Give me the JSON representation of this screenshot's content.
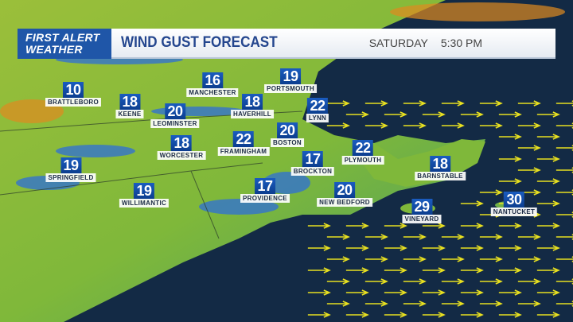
{
  "header": {
    "logo_line1": "FIRST ALERT",
    "logo_line2": "WEATHER",
    "title": "WIND GUST FORECAST",
    "day": "SATURDAY",
    "time": "5:30 PM"
  },
  "colors": {
    "logo_bg": "#1f56a8",
    "title": "#24468e",
    "ocean": "#132a45",
    "land": "#7fb83a",
    "arrow": "#e8e020"
  },
  "units": "mph",
  "cities": [
    {
      "name": "BRATTLEBORO",
      "gust": "10"
    },
    {
      "name": "KEENE",
      "gust": "18"
    },
    {
      "name": "LEOMINSTER",
      "gust": "20"
    },
    {
      "name": "MANCHESTER",
      "gust": "16"
    },
    {
      "name": "PORTSMOUTH",
      "gust": "19"
    },
    {
      "name": "HAVERHILL",
      "gust": "18"
    },
    {
      "name": "LYNN",
      "gust": "22"
    },
    {
      "name": "BOSTON",
      "gust": "20"
    },
    {
      "name": "FRAMINGHAM",
      "gust": "22"
    },
    {
      "name": "WORCESTER",
      "gust": "18"
    },
    {
      "name": "SPRINGFIELD",
      "gust": "19"
    },
    {
      "name": "WILLIMANTIC",
      "gust": "19"
    },
    {
      "name": "PROVIDENCE",
      "gust": "17"
    },
    {
      "name": "BROCKTON",
      "gust": "17"
    },
    {
      "name": "PLYMOUTH",
      "gust": "22"
    },
    {
      "name": "NEW BEDFORD",
      "gust": "20"
    },
    {
      "name": "BARNSTABLE",
      "gust": "18"
    },
    {
      "name": "VINEYARD",
      "gust": "29"
    },
    {
      "name": "NANTUCKET",
      "gust": "30"
    }
  ]
}
